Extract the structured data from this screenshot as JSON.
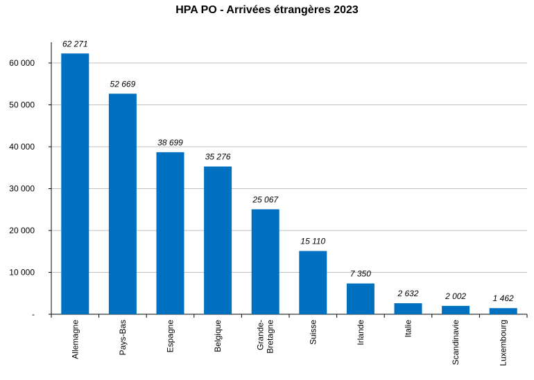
{
  "chart_data": {
    "type": "bar",
    "title": "HPA PO - Arrivées étrangères 2023",
    "xlabel": "",
    "ylabel": "",
    "categories": [
      "Allemagne",
      "Pays-Bas",
      "Espagne",
      "Belgique",
      "Grande-Bretagne",
      "Suisse",
      "Irlande",
      "Italie",
      "Scandinavie",
      "Luxembourg"
    ],
    "category_label_lines": [
      [
        "Allemagne"
      ],
      [
        "Pays-Bas"
      ],
      [
        "Espagne"
      ],
      [
        "Belgique"
      ],
      [
        "Grande-",
        "Bretagne"
      ],
      [
        "Suisse"
      ],
      [
        "Irlande"
      ],
      [
        "Italie"
      ],
      [
        "Scandinavie"
      ],
      [
        "Luxembourg"
      ]
    ],
    "values": [
      62271,
      52669,
      38699,
      35276,
      25067,
      15110,
      7350,
      2632,
      2002,
      1462
    ],
    "value_labels": [
      "62 271",
      "52 669",
      "38 699",
      "35 276",
      "25 067",
      "15 110",
      "7 350",
      "2 632",
      "2 002",
      "1 462"
    ],
    "ylim": [
      0,
      70000
    ],
    "yticks": [
      0,
      10000,
      20000,
      30000,
      40000,
      50000,
      60000
    ],
    "ytick_labels": [
      "-",
      "10 000",
      "20 000",
      "30 000",
      "40 000",
      "50 000",
      "60 000"
    ],
    "grid": true,
    "legend": "none",
    "bar_color": "#0070C0",
    "grid_color": "#C0C0C0"
  }
}
